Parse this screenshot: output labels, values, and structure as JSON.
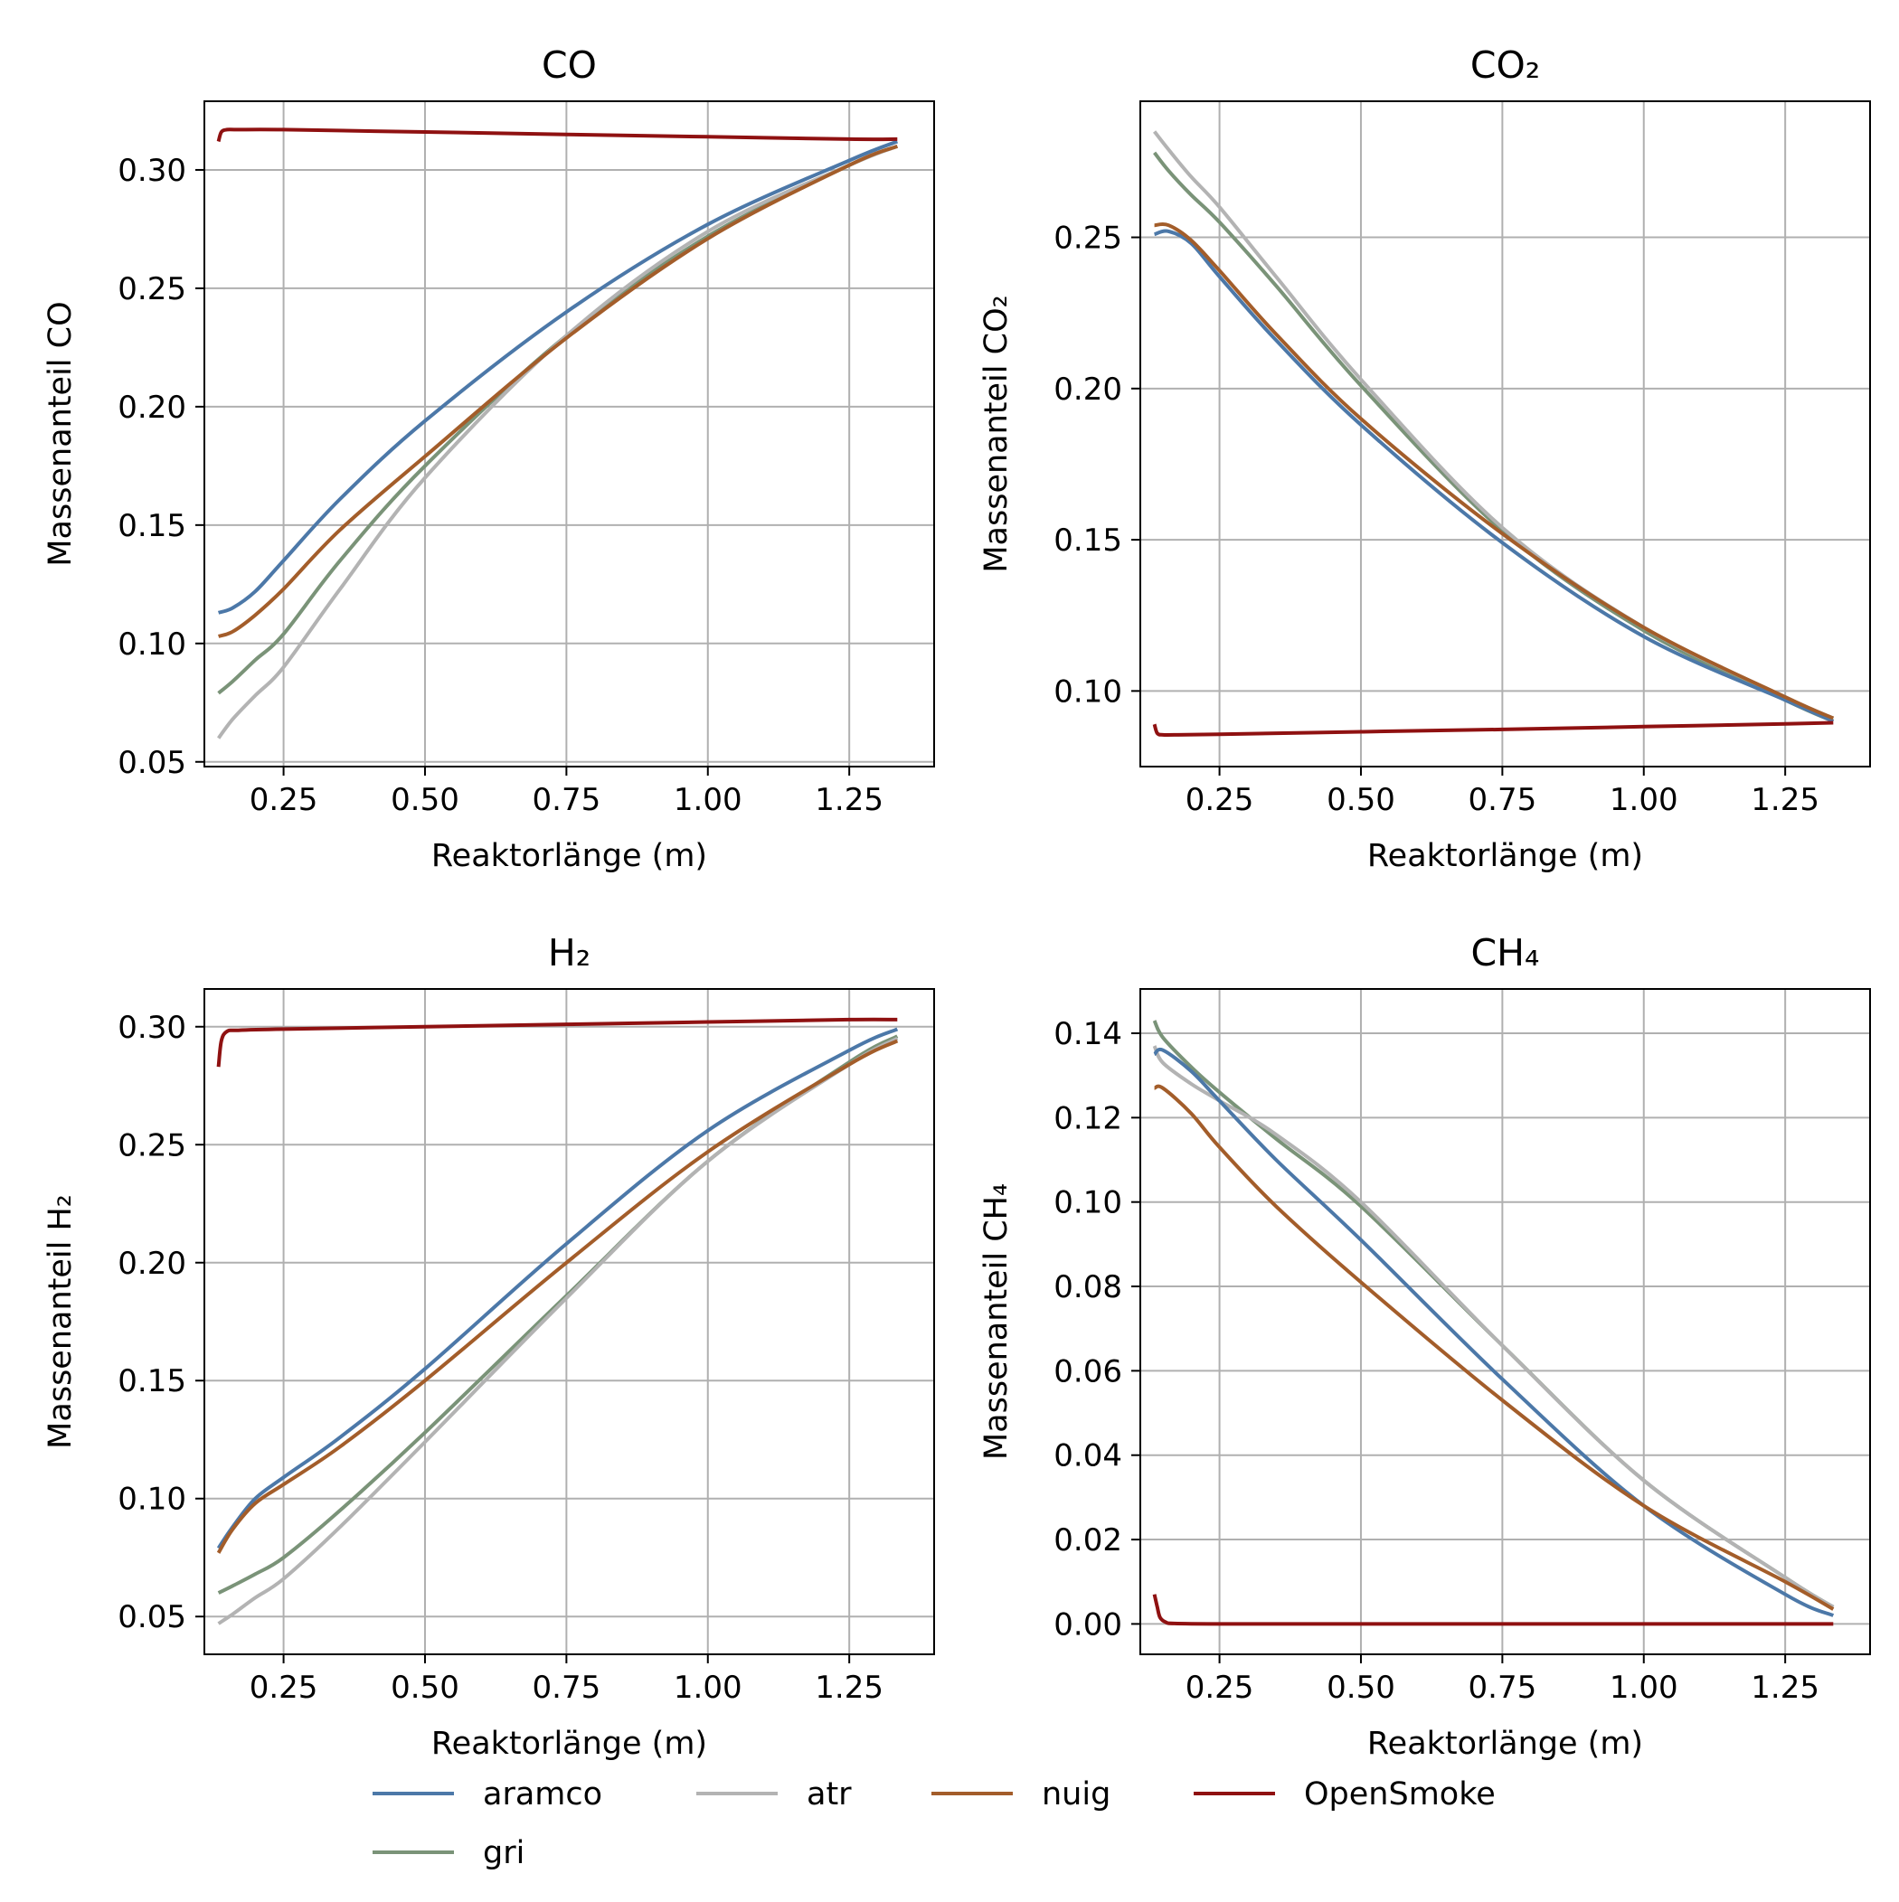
{
  "chart_data": [
    {
      "type": "line",
      "title": "CO",
      "xlabel": "Reaktorlänge (m)",
      "ylabel": "Massenanteil CO",
      "xlim": [
        0.11,
        1.4
      ],
      "ylim": [
        0.048,
        0.329
      ],
      "xticks": [
        0.25,
        0.5,
        0.75,
        1.0,
        1.25
      ],
      "xtick_labels": [
        "0.25",
        "0.50",
        "0.75",
        "1.00",
        "1.25"
      ],
      "yticks": [
        0.05,
        0.1,
        0.15,
        0.2,
        0.25,
        0.3
      ],
      "ytick_labels": [
        "0.05",
        "0.10",
        "0.15",
        "0.20",
        "0.25",
        "0.30"
      ],
      "grid": true,
      "series": [
        {
          "name": "aramco",
          "x": [
            0.135,
            0.16,
            0.2,
            0.25,
            0.35,
            0.5,
            0.75,
            1.0,
            1.25,
            1.335
          ],
          "y": [
            0.113,
            0.115,
            0.122,
            0.135,
            0.161,
            0.194,
            0.24,
            0.277,
            0.304,
            0.312
          ]
        },
        {
          "name": "atr",
          "x": [
            0.135,
            0.16,
            0.2,
            0.25,
            0.35,
            0.5,
            0.75,
            1.0,
            1.25,
            1.335
          ],
          "y": [
            0.06,
            0.068,
            0.078,
            0.09,
            0.123,
            0.17,
            0.23,
            0.274,
            0.302,
            0.31
          ]
        },
        {
          "name": "nuig",
          "x": [
            0.135,
            0.16,
            0.2,
            0.25,
            0.35,
            0.5,
            0.75,
            1.0,
            1.25,
            1.335
          ],
          "y": [
            0.103,
            0.105,
            0.112,
            0.123,
            0.148,
            0.179,
            0.229,
            0.271,
            0.302,
            0.31
          ]
        },
        {
          "name": "OpenSmoke",
          "x": [
            0.135,
            0.14,
            0.15,
            0.17,
            0.25,
            0.5,
            0.75,
            1.0,
            1.25,
            1.335
          ],
          "y": [
            0.312,
            0.316,
            0.317,
            0.317,
            0.317,
            0.316,
            0.315,
            0.314,
            0.313,
            0.313
          ]
        },
        {
          "name": "gri",
          "x": [
            0.135,
            0.16,
            0.2,
            0.25,
            0.35,
            0.5,
            0.75,
            1.0,
            1.25,
            1.335
          ],
          "y": [
            0.079,
            0.084,
            0.093,
            0.104,
            0.135,
            0.175,
            0.23,
            0.272,
            0.302,
            0.31
          ]
        }
      ]
    },
    {
      "type": "line",
      "title": "CO₂",
      "xlabel": "Reaktorlänge (m)",
      "ylabel": "Massenanteil CO₂",
      "xlim": [
        0.11,
        1.4
      ],
      "ylim": [
        0.075,
        0.295
      ],
      "xticks": [
        0.25,
        0.5,
        0.75,
        1.0,
        1.25
      ],
      "xtick_labels": [
        "0.25",
        "0.50",
        "0.75",
        "1.00",
        "1.25"
      ],
      "yticks": [
        0.1,
        0.15,
        0.2,
        0.25
      ],
      "ytick_labels": [
        "0.10",
        "0.15",
        "0.20",
        "0.25"
      ],
      "grid": true,
      "series": [
        {
          "name": "aramco",
          "x": [
            0.135,
            0.16,
            0.2,
            0.25,
            0.35,
            0.5,
            0.75,
            1.0,
            1.25,
            1.335
          ],
          "y": [
            0.251,
            0.252,
            0.248,
            0.237,
            0.216,
            0.188,
            0.149,
            0.118,
            0.097,
            0.09
          ]
        },
        {
          "name": "atr",
          "x": [
            0.135,
            0.16,
            0.2,
            0.25,
            0.35,
            0.5,
            0.75,
            1.0,
            1.25,
            1.335
          ],
          "y": [
            0.285,
            0.279,
            0.27,
            0.26,
            0.237,
            0.203,
            0.154,
            0.121,
            0.098,
            0.091
          ]
        },
        {
          "name": "nuig",
          "x": [
            0.135,
            0.16,
            0.2,
            0.25,
            0.35,
            0.5,
            0.75,
            1.0,
            1.25,
            1.335
          ],
          "y": [
            0.254,
            0.254,
            0.249,
            0.239,
            0.218,
            0.19,
            0.152,
            0.121,
            0.098,
            0.091
          ]
        },
        {
          "name": "OpenSmoke",
          "x": [
            0.135,
            0.14,
            0.15,
            0.17,
            0.25,
            0.5,
            0.75,
            1.0,
            1.25,
            1.335
          ],
          "y": [
            0.089,
            0.086,
            0.0855,
            0.0855,
            0.0857,
            0.0865,
            0.0873,
            0.0882,
            0.0891,
            0.0895
          ]
        },
        {
          "name": "gri",
          "x": [
            0.135,
            0.16,
            0.2,
            0.25,
            0.35,
            0.5,
            0.75,
            1.0,
            1.25,
            1.335
          ],
          "y": [
            0.278,
            0.272,
            0.264,
            0.255,
            0.234,
            0.201,
            0.153,
            0.12,
            0.097,
            0.09
          ]
        }
      ]
    },
    {
      "type": "line",
      "title": "H₂",
      "xlabel": "Reaktorlänge (m)",
      "ylabel": "Massenanteil H₂",
      "xlim": [
        0.11,
        1.4
      ],
      "ylim": [
        0.034,
        0.316
      ],
      "xticks": [
        0.25,
        0.5,
        0.75,
        1.0,
        1.25
      ],
      "xtick_labels": [
        "0.25",
        "0.50",
        "0.75",
        "1.00",
        "1.25"
      ],
      "yticks": [
        0.05,
        0.1,
        0.15,
        0.2,
        0.25,
        0.3
      ],
      "ytick_labels": [
        "0.05",
        "0.10",
        "0.15",
        "0.20",
        "0.25",
        "0.30"
      ],
      "grid": true,
      "series": [
        {
          "name": "aramco",
          "x": [
            0.135,
            0.16,
            0.2,
            0.25,
            0.35,
            0.5,
            0.75,
            1.0,
            1.25,
            1.335
          ],
          "y": [
            0.079,
            0.088,
            0.1,
            0.109,
            0.126,
            0.155,
            0.208,
            0.256,
            0.29,
            0.299
          ]
        },
        {
          "name": "atr",
          "x": [
            0.135,
            0.16,
            0.2,
            0.25,
            0.35,
            0.5,
            0.75,
            1.0,
            1.25,
            1.335
          ],
          "y": [
            0.047,
            0.051,
            0.058,
            0.066,
            0.088,
            0.124,
            0.185,
            0.243,
            0.284,
            0.295
          ]
        },
        {
          "name": "nuig",
          "x": [
            0.135,
            0.16,
            0.2,
            0.25,
            0.35,
            0.5,
            0.75,
            1.0,
            1.25,
            1.335
          ],
          "y": [
            0.077,
            0.087,
            0.098,
            0.106,
            0.122,
            0.15,
            0.2,
            0.247,
            0.284,
            0.294
          ]
        },
        {
          "name": "OpenSmoke",
          "x": [
            0.135,
            0.14,
            0.15,
            0.17,
            0.25,
            0.5,
            0.75,
            1.0,
            1.25,
            1.335
          ],
          "y": [
            0.283,
            0.294,
            0.298,
            0.2985,
            0.299,
            0.3,
            0.301,
            0.302,
            0.303,
            0.303
          ]
        },
        {
          "name": "gri",
          "x": [
            0.135,
            0.16,
            0.2,
            0.25,
            0.35,
            0.5,
            0.75,
            1.0,
            1.25,
            1.335
          ],
          "y": [
            0.06,
            0.063,
            0.068,
            0.075,
            0.095,
            0.128,
            0.186,
            0.243,
            0.285,
            0.296
          ]
        }
      ]
    },
    {
      "type": "line",
      "title": "CH₄",
      "xlabel": "Reaktorlänge (m)",
      "ylabel": "Massenanteil CH₄",
      "xlim": [
        0.11,
        1.4
      ],
      "ylim": [
        -0.0072,
        0.1505
      ],
      "xticks": [
        0.25,
        0.5,
        0.75,
        1.0,
        1.25
      ],
      "xtick_labels": [
        "0.25",
        "0.50",
        "0.75",
        "1.00",
        "1.25"
      ],
      "yticks": [
        0.0,
        0.02,
        0.04,
        0.06,
        0.08,
        0.1,
        0.12,
        0.14
      ],
      "ytick_labels": [
        "0.00",
        "0.02",
        "0.04",
        "0.06",
        "0.08",
        "0.10",
        "0.12",
        "0.14"
      ],
      "grid": true,
      "series": [
        {
          "name": "aramco",
          "x": [
            0.135,
            0.15,
            0.2,
            0.25,
            0.35,
            0.5,
            0.75,
            1.0,
            1.25,
            1.335
          ],
          "y": [
            0.135,
            0.136,
            0.131,
            0.124,
            0.11,
            0.091,
            0.058,
            0.028,
            0.007,
            0.002
          ]
        },
        {
          "name": "atr",
          "x": [
            0.135,
            0.15,
            0.2,
            0.25,
            0.35,
            0.5,
            0.75,
            1.0,
            1.25,
            1.335
          ],
          "y": [
            0.137,
            0.133,
            0.128,
            0.124,
            0.116,
            0.1,
            0.066,
            0.034,
            0.011,
            0.004
          ]
        },
        {
          "name": "nuig",
          "x": [
            0.135,
            0.15,
            0.2,
            0.25,
            0.35,
            0.5,
            0.75,
            1.0,
            1.25,
            1.335
          ],
          "y": [
            0.127,
            0.127,
            0.121,
            0.113,
            0.099,
            0.081,
            0.053,
            0.028,
            0.01,
            0.0035
          ]
        },
        {
          "name": "OpenSmoke",
          "x": [
            0.135,
            0.14,
            0.145,
            0.155,
            0.17,
            0.25,
            0.5,
            0.75,
            1.0,
            1.25,
            1.335
          ],
          "y": [
            0.007,
            0.004,
            0.0015,
            0.0004,
            0.0001,
            0.0,
            0.0,
            0.0,
            0.0,
            0.0,
            0.0
          ]
        },
        {
          "name": "gri",
          "x": [
            0.135,
            0.15,
            0.2,
            0.25,
            0.35,
            0.5,
            0.75,
            1.0,
            1.25,
            1.335
          ],
          "y": [
            0.143,
            0.139,
            0.132,
            0.126,
            0.115,
            0.099,
            0.066,
            0.034,
            0.011,
            0.004
          ]
        }
      ]
    }
  ],
  "legend": {
    "placement": "bottom-center",
    "entries": [
      {
        "name": "aramco",
        "color": "#4C78A8"
      },
      {
        "name": "atr",
        "color": "#B3B3B3"
      },
      {
        "name": "nuig",
        "color": "#A35D2A"
      },
      {
        "name": "OpenSmoke",
        "color": "#8F1111"
      },
      {
        "name": "gri",
        "color": "#7A9378"
      }
    ]
  },
  "colors": {
    "aramco": "#4C78A8",
    "atr": "#B3B3B3",
    "nuig": "#A35D2A",
    "OpenSmoke": "#8F1111",
    "gri": "#7A9378",
    "grid": "#B0B0B0"
  },
  "draw_order": [
    "gri",
    "atr",
    "aramco",
    "nuig",
    "OpenSmoke"
  ]
}
